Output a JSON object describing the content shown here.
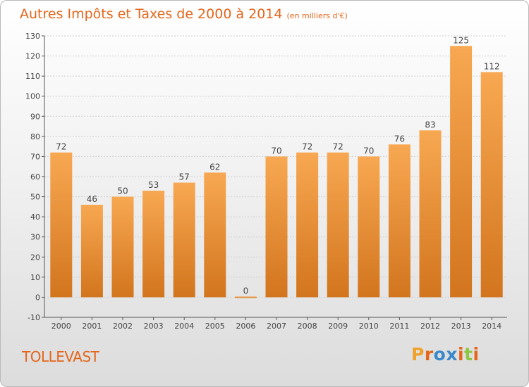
{
  "header": {
    "title": "Autres Impôts et Taxes de 2000 à 2014",
    "unit": "(en milliers d'€)"
  },
  "footer": {
    "commune": "TOLLEVAST",
    "logo_text": "Proxiti"
  },
  "colors": {
    "accent": "#e4661b",
    "bar_light": "#f8a852",
    "bar_dark": "#d2751e",
    "logo_letters": [
      "#f0a12a",
      "#e4661b",
      "#3a88c9",
      "#3a88c9",
      "#e4661b",
      "#8dc63f",
      "#e4661b"
    ]
  },
  "chart_data": {
    "type": "bar",
    "title": "Autres Impôts et Taxes de 2000 à 2014",
    "subtitle": "(en milliers d'€)",
    "categories": [
      "2000",
      "2001",
      "2002",
      "2003",
      "2004",
      "2005",
      "2006",
      "2007",
      "2008",
      "2009",
      "2010",
      "2011",
      "2012",
      "2013",
      "2014"
    ],
    "values": [
      72,
      46,
      50,
      53,
      57,
      62,
      0,
      70,
      72,
      72,
      70,
      76,
      83,
      125,
      112
    ],
    "ylim": [
      -10,
      130
    ],
    "yticks": [
      -10,
      0,
      10,
      20,
      30,
      40,
      50,
      60,
      70,
      80,
      90,
      100,
      110,
      120,
      130
    ],
    "grid": true,
    "legend": "none",
    "xlabel": "",
    "ylabel": ""
  }
}
